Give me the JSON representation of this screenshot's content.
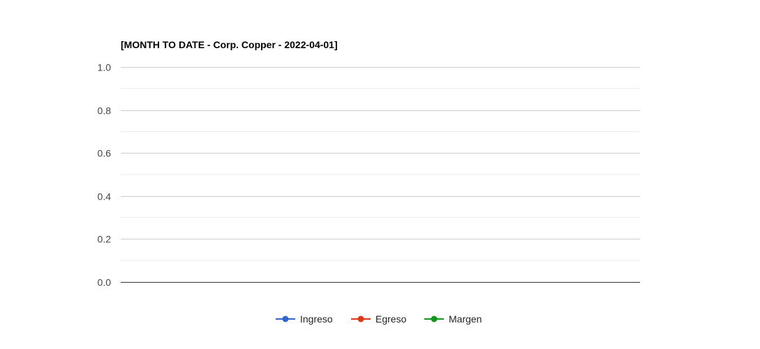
{
  "chart_data": {
    "type": "line",
    "title": "[MONTH TO DATE - Corp. Copper - 2022-04-01]",
    "xlabel": "",
    "ylabel": "",
    "ylim": [
      0,
      1.0
    ],
    "y_ticks": [
      "0.0",
      "0.2",
      "0.4",
      "0.6",
      "0.8",
      "1.0"
    ],
    "grid": true,
    "legend_position": "bottom",
    "categories": [],
    "series": [
      {
        "name": "Ingreso",
        "color": "#3366cc",
        "values": []
      },
      {
        "name": "Egreso",
        "color": "#dc3912",
        "values": []
      },
      {
        "name": "Margen",
        "color": "#109618",
        "values": []
      }
    ]
  }
}
